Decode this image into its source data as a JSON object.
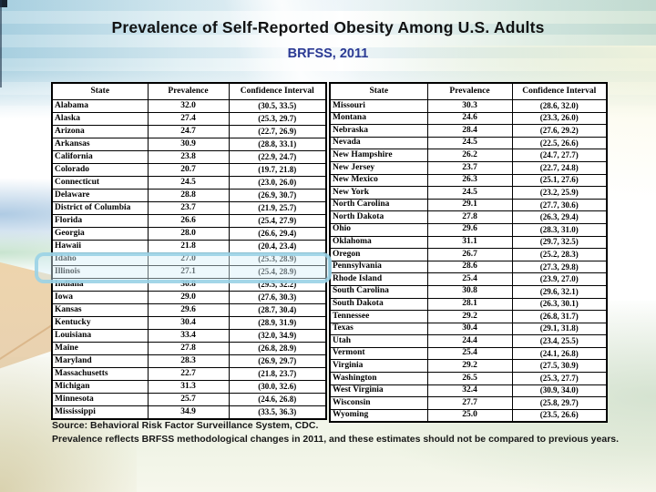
{
  "slide": {
    "title": "Prevalence of Self-Reported Obesity Among U.S. Adults",
    "subtitle": "BRFSS, 2011",
    "footer": {
      "source": "Source: Behavioral Risk Factor Surveillance System, CDC.",
      "note": "Prevalence reflects BRFSS methodological changes in 2011, and these estimates should not be compared to previous years."
    }
  },
  "table": {
    "headers": [
      "State",
      "Prevalence",
      "Confidence Interval"
    ],
    "left_rows": [
      [
        "Alabama",
        "32.0",
        "(30.5, 33.5)"
      ],
      [
        "Alaska",
        "27.4",
        "(25.3, 29.7)"
      ],
      [
        "Arizona",
        "24.7",
        "(22.7, 26.9)"
      ],
      [
        "Arkansas",
        "30.9",
        "(28.8, 33.1)"
      ],
      [
        "California",
        "23.8",
        "(22.9, 24.7)"
      ],
      [
        "Colorado",
        "20.7",
        "(19.7, 21.8)"
      ],
      [
        "Connecticut",
        "24.5",
        "(23.0, 26.0)"
      ],
      [
        "Delaware",
        "28.8",
        "(26.9, 30.7)"
      ],
      [
        "District of Columbia",
        "23.7",
        "(21.9, 25.7)"
      ],
      [
        "Florida",
        "26.6",
        "(25.4, 27.9)"
      ],
      [
        "Georgia",
        "28.0",
        "(26.6, 29.4)"
      ],
      [
        "Hawaii",
        "21.8",
        "(20.4, 23.4)"
      ],
      [
        "Idaho",
        "27.0",
        "(25.3, 28.9)"
      ],
      [
        "Illinois",
        "27.1",
        "(25.4, 28.9)"
      ],
      [
        "Indiana",
        "30.8",
        "(29.5, 32.2)"
      ],
      [
        "Iowa",
        "29.0",
        "(27.6, 30.3)"
      ],
      [
        "Kansas",
        "29.6",
        "(28.7, 30.4)"
      ],
      [
        "Kentucky",
        "30.4",
        "(28.9, 31.9)"
      ],
      [
        "Louisiana",
        "33.4",
        "(32.0, 34.9)"
      ],
      [
        "Maine",
        "27.8",
        "(26.8, 28.9)"
      ],
      [
        "Maryland",
        "28.3",
        "(26.9, 29.7)"
      ],
      [
        "Massachusetts",
        "22.7",
        "(21.8, 23.7)"
      ],
      [
        "Michigan",
        "31.3",
        "(30.0, 32.6)"
      ],
      [
        "Minnesota",
        "25.7",
        "(24.6, 26.8)"
      ],
      [
        "Mississippi",
        "34.9",
        "(33.5, 36.3)"
      ]
    ],
    "right_rows": [
      [
        "Missouri",
        "30.3",
        "(28.6, 32.0)"
      ],
      [
        "Montana",
        "24.6",
        "(23.3, 26.0)"
      ],
      [
        "Nebraska",
        "28.4",
        "(27.6, 29.2)"
      ],
      [
        "Nevada",
        "24.5",
        "(22.5, 26.6)"
      ],
      [
        "New Hampshire",
        "26.2",
        "(24.7, 27.7)"
      ],
      [
        "New Jersey",
        "23.7",
        "(22.7, 24.8)"
      ],
      [
        "New Mexico",
        "26.3",
        "(25.1, 27.6)"
      ],
      [
        "New York",
        "24.5",
        "(23.2, 25.9)"
      ],
      [
        "North Carolina",
        "29.1",
        "(27.7, 30.6)"
      ],
      [
        "North Dakota",
        "27.8",
        "(26.3, 29.4)"
      ],
      [
        "Ohio",
        "29.6",
        "(28.3, 31.0)"
      ],
      [
        "Oklahoma",
        "31.1",
        "(29.7, 32.5)"
      ],
      [
        "Oregon",
        "26.7",
        "(25.2, 28.3)"
      ],
      [
        "Pennsylvania",
        "28.6",
        "(27.3, 29.8)"
      ],
      [
        "Rhode Island",
        "25.4",
        "(23.9, 27.0)"
      ],
      [
        "South Carolina",
        "30.8",
        "(29.6, 32.1)"
      ],
      [
        "South Dakota",
        "28.1",
        "(26.3, 30.1)"
      ],
      [
        "Tennessee",
        "29.2",
        "(26.8, 31.7)"
      ],
      [
        "Texas",
        "30.4",
        "(29.1, 31.8)"
      ],
      [
        "Utah",
        "24.4",
        "(23.4, 25.5)"
      ],
      [
        "Vermont",
        "25.4",
        "(24.1, 26.8)"
      ],
      [
        "Virginia",
        "29.2",
        "(27.5, 30.9)"
      ],
      [
        "Washington",
        "26.5",
        "(25.3, 27.7)"
      ],
      [
        "West Virginia",
        "32.4",
        "(30.9, 34.0)"
      ],
      [
        "Wisconsin",
        "27.7",
        "(25.8, 29.7)"
      ],
      [
        "Wyoming",
        "25.0",
        "(23.5, 26.6)"
      ]
    ]
  },
  "highlight": {
    "state": "Illinois",
    "border_color": "#96d0e4",
    "fill_color": "rgba(216,240,248,0.45)"
  },
  "colors": {
    "title_text": "#121212",
    "subtitle_text": "#2b3a94",
    "table_border": "#000000",
    "table_background": "#ffffff",
    "footer_text": "#171717"
  }
}
